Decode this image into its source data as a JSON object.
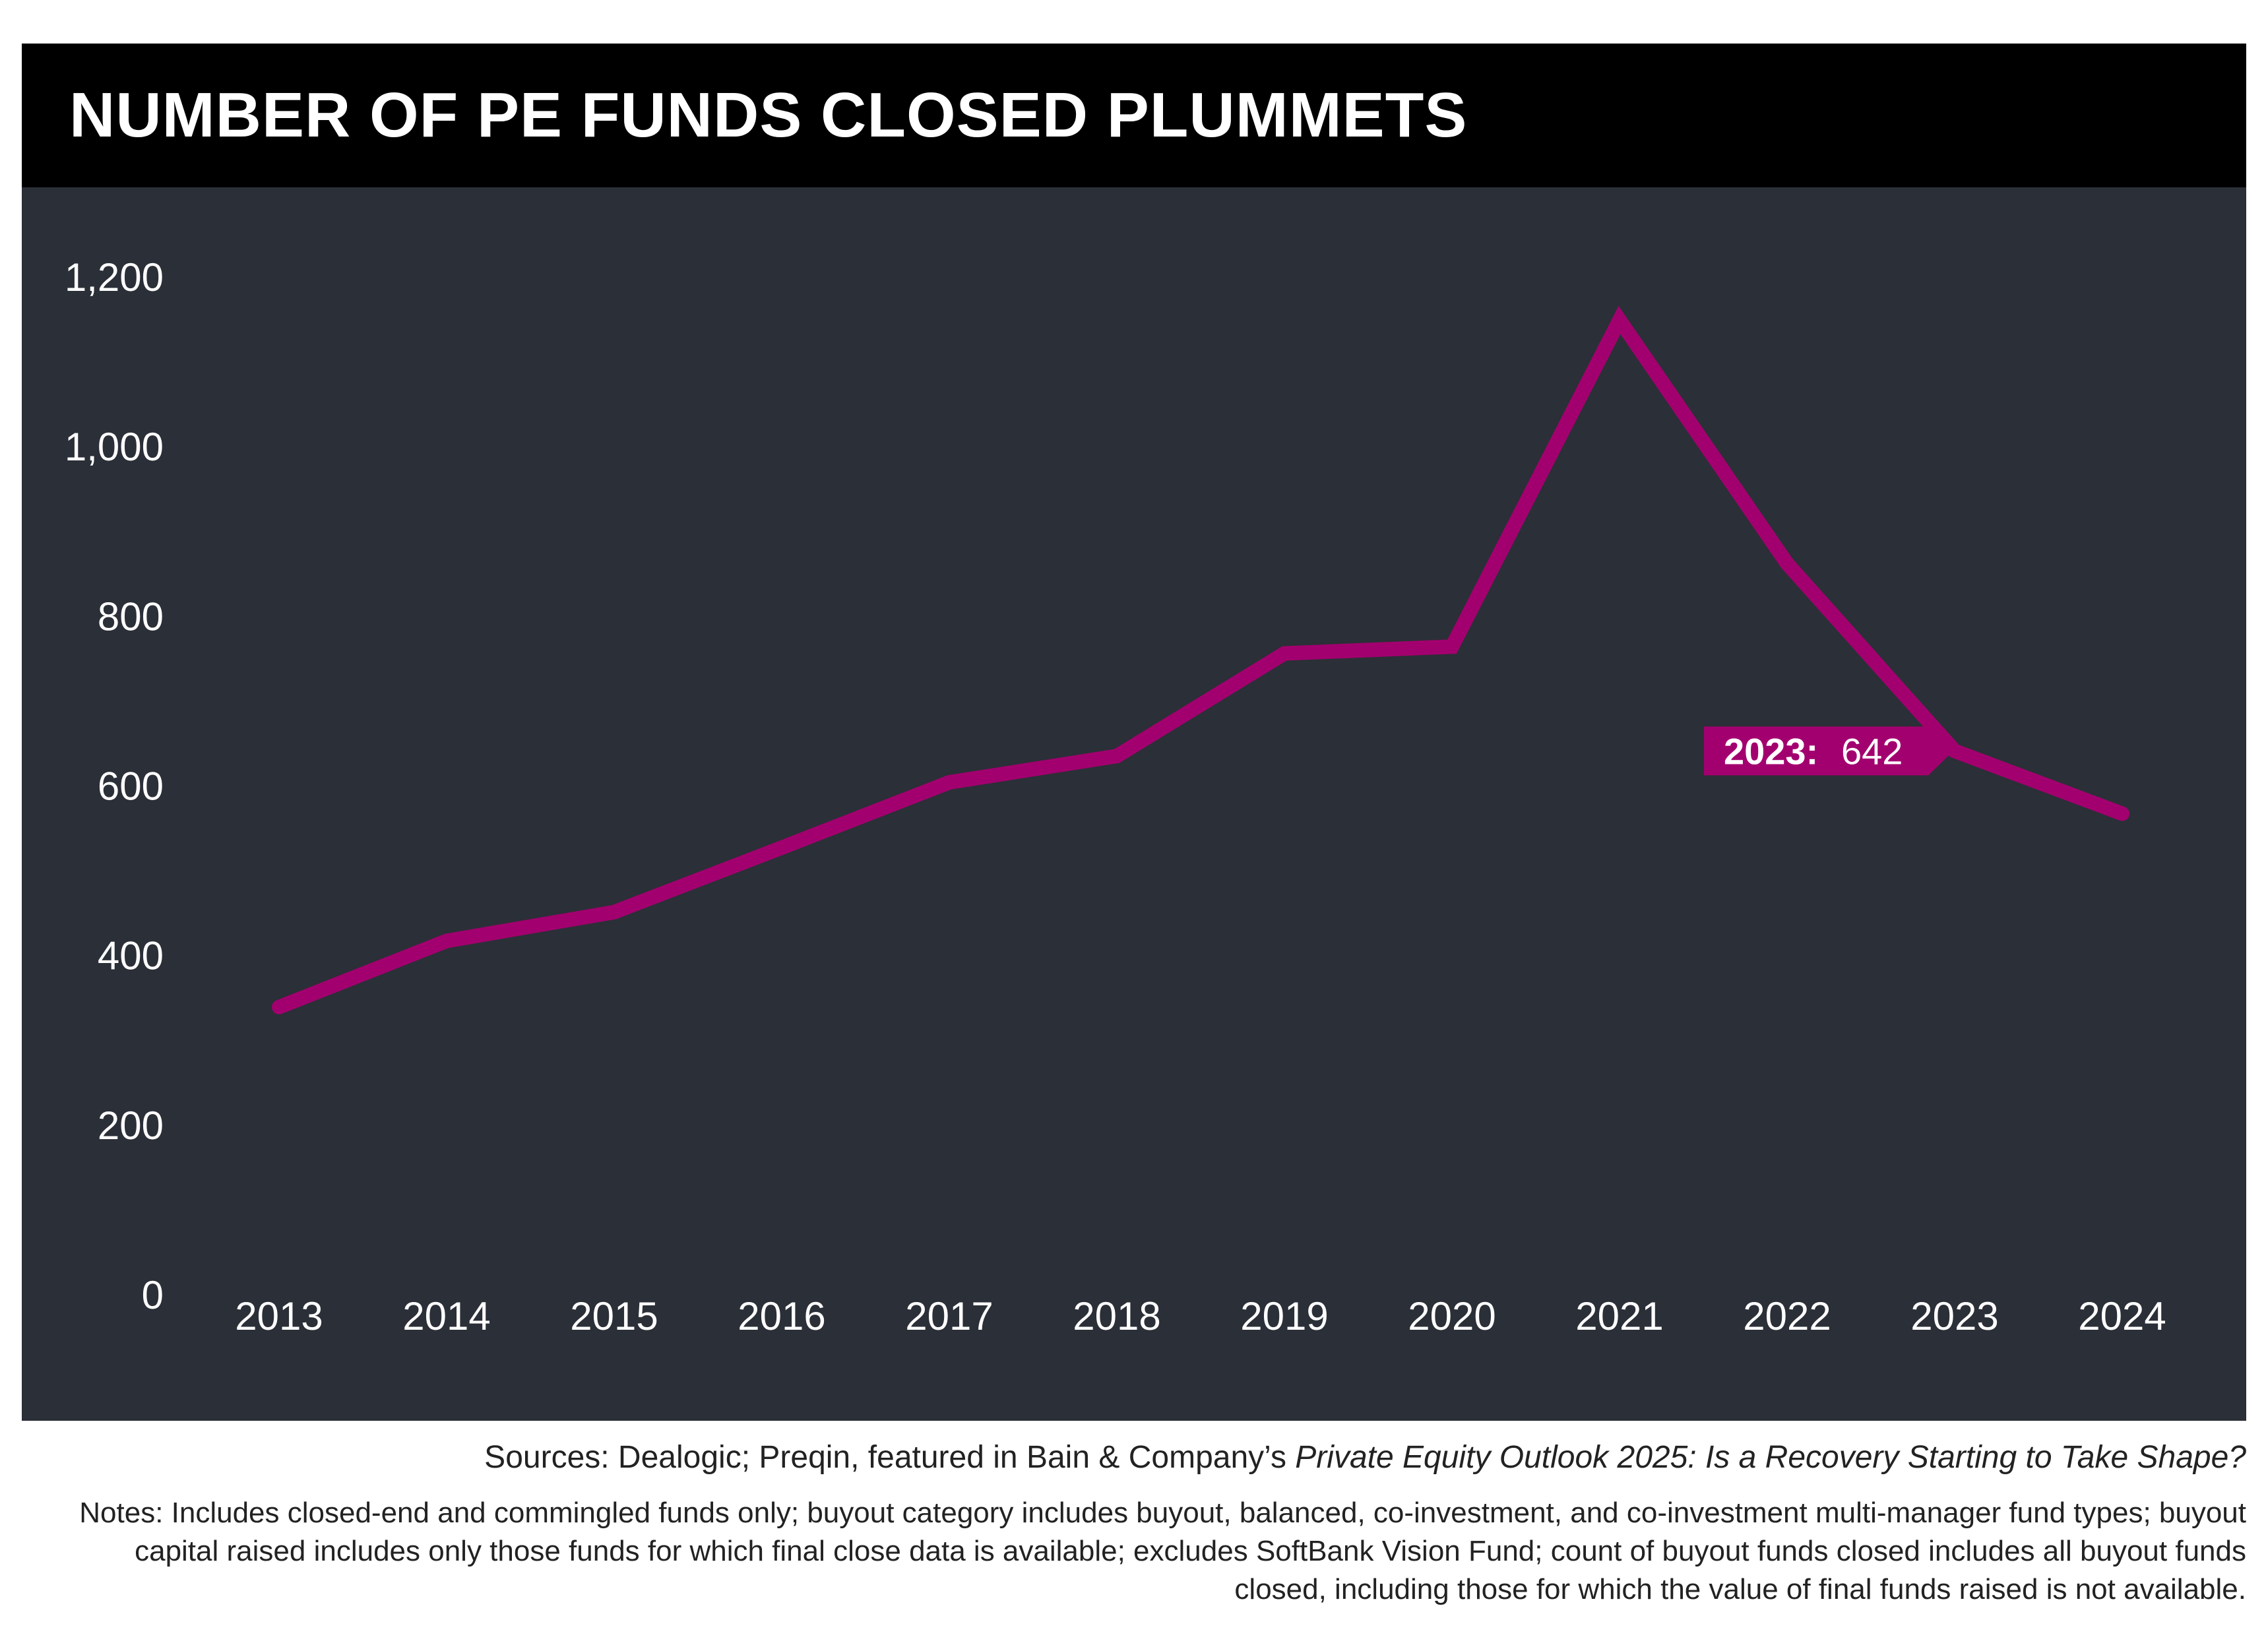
{
  "title": "NUMBER OF PE FUNDS CLOSED PLUMMETS",
  "colors": {
    "title_background": "#000000",
    "plot_background": "#2b2f37",
    "line": "#a3006f",
    "text_light": "#ffffff",
    "text_dark": "#222222"
  },
  "chart_data": {
    "type": "line",
    "title": "NUMBER OF PE FUNDS CLOSED PLUMMETS",
    "xlabel": "",
    "ylabel": "",
    "grid": false,
    "legend": "none",
    "categories": [
      "2013",
      "2014",
      "2015",
      "2016",
      "2017",
      "2018",
      "2019",
      "2020",
      "2021",
      "2022",
      "2023",
      "2024"
    ],
    "values": [
      340,
      418,
      452,
      528,
      605,
      636,
      757,
      765,
      1150,
      863,
      642,
      568
    ],
    "ylim": [
      0,
      1200
    ],
    "yticks": [
      0,
      200,
      400,
      600,
      800,
      1000,
      1200
    ],
    "ytick_labels": [
      "0",
      "200",
      "400",
      "600",
      "800",
      "1,000",
      "1,200"
    ],
    "annotation": {
      "category": "2023",
      "year_label": "2023:",
      "value_label": "642"
    }
  },
  "sources": {
    "prefix": "Sources: Dealogic; Preqin, featured in Bain & Company’s ",
    "publication": "Private Equity Outlook 2025: Is a Recovery Starting to Take Shape?"
  },
  "notes": "Notes: Includes closed-end and commingled funds only; buyout category includes buyout, balanced, co-investment, and co-investment multi-manager fund types; buyout capital raised includes only those funds for which final close data is available; excludes SoftBank Vision Fund; count of buyout funds closed includes all buyout funds closed, including those for which the value of final funds raised is not available."
}
